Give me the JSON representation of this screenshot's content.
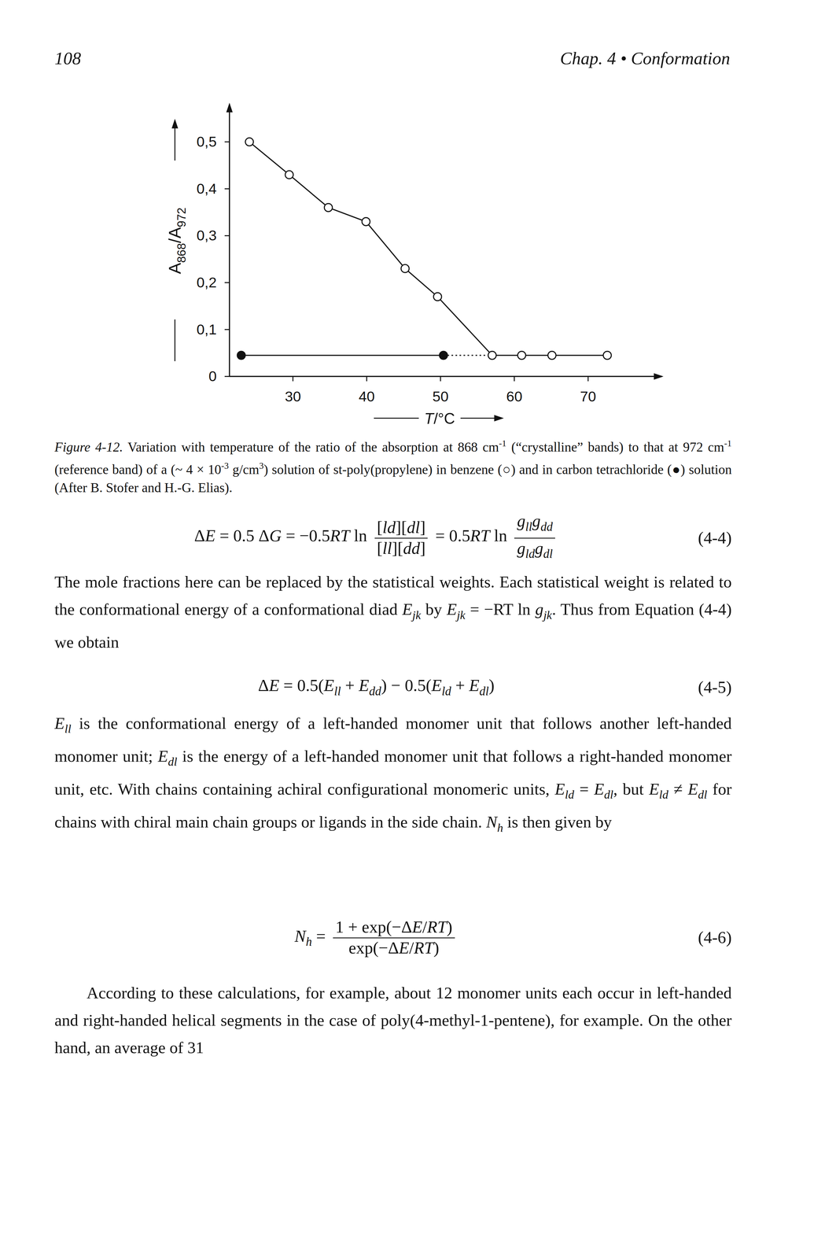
{
  "header": {
    "page_number": "108",
    "running_head": "Chap. 4 • Conformation"
  },
  "chart_data": {
    "type": "line",
    "xlabel": [
      {
        "i": "T"
      },
      "/°C"
    ],
    "ylabel": [
      "A",
      {
        "sub": "868"
      },
      "/A",
      {
        "sub": "972"
      }
    ],
    "xlim": [
      21.4,
      80
    ],
    "ylim": [
      0,
      0.58
    ],
    "xticks": [
      30,
      40,
      50,
      60,
      70
    ],
    "yticks": [
      0,
      {
        "value": 0.1,
        "label": "0,1"
      },
      {
        "value": 0.2,
        "label": "0,2"
      },
      {
        "value": 0.3,
        "label": "0,3"
      },
      {
        "value": 0.4,
        "label": "0,4"
      },
      {
        "value": 0.5,
        "label": "0,5"
      }
    ],
    "series": [
      {
        "color": "#111111",
        "marker": "open-circle",
        "line_style": "solid",
        "x": [
          24.1,
          29.5,
          34.8,
          39.9,
          45.2,
          49.6,
          57.0,
          61.0,
          65.1,
          72.6
        ],
        "values": [
          0.5,
          0.43,
          0.36,
          0.33,
          0.23,
          0.17,
          0.045,
          0.045,
          0.045,
          0.045
        ]
      },
      {
        "color": "#111111",
        "marker": "filled-circle",
        "line_style": "solid",
        "x": [
          23.0,
          50.4
        ],
        "values": [
          0.045,
          0.045
        ]
      }
    ]
  },
  "caption": [
    {
      "i": "Figure 4-12."
    },
    " Variation with temperature of the ratio of the absorption at 868 cm",
    {
      "sup": "-1"
    },
    " (“crystalline” bands) to that at 972 cm",
    {
      "sup": "-1"
    },
    " (reference band) of a (~ 4 × 10",
    {
      "sup": "-3"
    },
    " g/cm",
    {
      "sup": "3"
    },
    ") solution of st-poly(propylene) in benzene (○) and in carbon tetrachloride (●) solution (After B. Stofer and H.-G. Elias)."
  ],
  "equations": [
    {
      "parts": [
        "Δ",
        {
          "i": "E"
        },
        " = 0.5 Δ",
        {
          "i": "G"
        },
        " = −0.5",
        {
          "i": "RT"
        },
        " ln ",
        {
          "frac": {
            "num": [
              "[",
              {
                "i": "ld"
              },
              "][",
              {
                "i": "dl"
              },
              "]"
            ],
            "den": [
              "[",
              {
                "i": "ll"
              },
              "][",
              {
                "i": "dd"
              },
              "]"
            ]
          }
        },
        " = 0.5",
        {
          "i": "RT"
        },
        " ln ",
        {
          "frac": {
            "num": [
              {
                "i": "g"
              },
              {
                "sub": "ll"
              },
              {
                "i": "g"
              },
              {
                "sub": "dd"
              }
            ],
            "den": [
              {
                "i": "g"
              },
              {
                "sub": "ld"
              },
              {
                "i": "g"
              },
              {
                "sub": "dl"
              }
            ]
          }
        }
      ],
      "number": "(4-4)"
    },
    {
      "parts": [
        "Δ",
        {
          "i": "E"
        },
        " = 0.5(",
        {
          "i": "E"
        },
        {
          "sub": "ll"
        },
        " + ",
        {
          "i": "E"
        },
        {
          "sub": "dd"
        },
        ") − 0.5(",
        {
          "i": "E"
        },
        {
          "sub": "ld"
        },
        " + ",
        {
          "i": "E"
        },
        {
          "sub": "dl"
        },
        ")"
      ],
      "number": "(4-5)"
    },
    {
      "parts": [
        {
          "i": "N"
        },
        {
          "sub": "h"
        },
        " = ",
        {
          "frac": {
            "num": [
              "1 + exp(−Δ",
              {
                "i": "E"
              },
              "/",
              {
                "i": "RT"
              },
              ")"
            ],
            "den": [
              "exp(−Δ",
              {
                "i": "E"
              },
              "/",
              {
                "i": "RT"
              },
              ")"
            ]
          }
        }
      ],
      "number": "(4-6)"
    }
  ],
  "paragraphs": [
    [
      "The mole fractions here can be replaced by the statistical weights. Each statistical weight is related to the conformational energy of a conformational diad ",
      {
        "i": "E"
      },
      {
        "sub": "jk"
      },
      " by ",
      {
        "i": "E"
      },
      {
        "sub": "jk"
      },
      " = −RT ln ",
      {
        "i": "g"
      },
      {
        "sub": "jk"
      },
      ". Thus from Equation (4-4) we obtain"
    ],
    [
      {
        "i": "E"
      },
      {
        "sub": "ll"
      },
      " is the conformational energy of a left-handed monomer unit that follows another left-handed monomer unit; ",
      {
        "i": "E"
      },
      {
        "sub": "dl"
      },
      " is the energy of a left-handed monomer unit that follows a right-handed monomer unit, etc. With chains containing achiral configurational monomeric units, ",
      {
        "i": "E"
      },
      {
        "sub": "ld"
      },
      " = ",
      {
        "i": "E"
      },
      {
        "sub": "dl"
      },
      ", but ",
      {
        "i": "E"
      },
      {
        "sub": "ld"
      },
      " ≠ ",
      {
        "i": "E"
      },
      {
        "sub": "dl"
      },
      " for chains with chiral main chain groups or ligands in the side chain. ",
      {
        "i": "N"
      },
      {
        "sub": "h"
      },
      " is then given by"
    ],
    [
      "According to these calculations, for example, about 12 monomer units each occur in left-handed and right-handed helical segments in the case of poly(4-methyl-1-pentene), for example. On the other hand, an average of 31"
    ]
  ]
}
